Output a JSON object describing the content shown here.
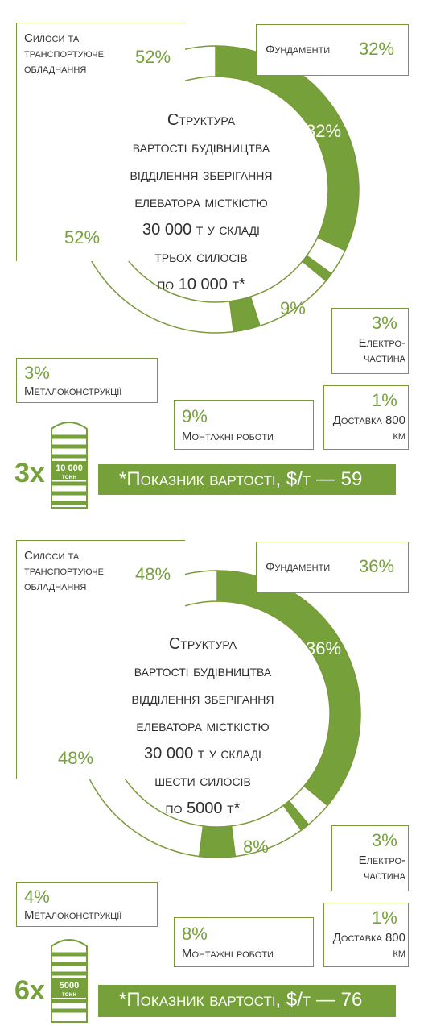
{
  "colors": {
    "accent": "#76a13a",
    "outline": "#7a9a3a"
  },
  "charts": [
    {
      "center_lines": [
        "Структура",
        "вартості будівництва",
        "відділення зберігання",
        "елеватора місткістю",
        "30 000 т у складі",
        "трьох силосів",
        "по 10 000 т*"
      ],
      "labels": {
        "silos": "Силоси та транспортуюче обладнання",
        "silos_pct": "52%",
        "silos_ring": "52%",
        "foundations": "Фундаменти",
        "foundations_pct": "32%",
        "foundations_ring": "32%",
        "electrical": "Електро-частина",
        "electrical_pct": "3%",
        "delivery": "Доставка 800 км",
        "delivery_pct": "1%",
        "installation": "Монтажні роботи",
        "installation_pct": "9%",
        "installation_ring": "9%",
        "metal": "Металоконструкції",
        "metal_pct": "3%"
      },
      "multiplier": "3x",
      "silo_capacity": "10 000",
      "silo_unit": "тонн",
      "cost_indicator": "*Показник вартості, $/т — 59"
    },
    {
      "center_lines": [
        "Структура",
        "вартості будівництва",
        "відділення зберігання",
        "елеватора місткістю",
        "30 000 т у складі",
        "шести силосів",
        "по 5000 т*"
      ],
      "labels": {
        "silos": "Силоси та транспортуюче обладнання",
        "silos_pct": "48%",
        "silos_ring": "48%",
        "foundations": "Фундаменти",
        "foundations_pct": "36%",
        "foundations_ring": "36%",
        "electrical": "Електро-частина",
        "electrical_pct": "3%",
        "delivery": "Доставка 800 км",
        "delivery_pct": "1%",
        "installation": "Монтажні роботи",
        "installation_pct": "8%",
        "installation_ring": "8%",
        "metal": "Металоконструкції",
        "metal_pct": "4%"
      },
      "multiplier": "6x",
      "silo_capacity": "5000",
      "silo_unit": "тонн",
      "cost_indicator": "*Показник вартості, $/т — 76"
    }
  ],
  "chart_data": [
    {
      "type": "pie",
      "categories": [
        "Фундаменти",
        "Електро-частина",
        "Доставка 800 км",
        "Монтажні роботи",
        "Металоконструкції",
        "Силоси та транспортуюче обладнання"
      ],
      "values": [
        32,
        3,
        1,
        9,
        3,
        52
      ],
      "fill": [
        "accent",
        "white",
        "accent",
        "white",
        "accent",
        "white"
      ]
    },
    {
      "type": "pie",
      "categories": [
        "Фундаменти",
        "Електро-частина",
        "Доставка 800 км",
        "Монтажні роботи",
        "Металоконструкції",
        "Силоси та транспортуюче обладнання"
      ],
      "values": [
        36,
        3,
        1,
        8,
        4,
        48
      ],
      "fill": [
        "accent",
        "white",
        "accent",
        "white",
        "accent",
        "white"
      ]
    }
  ]
}
